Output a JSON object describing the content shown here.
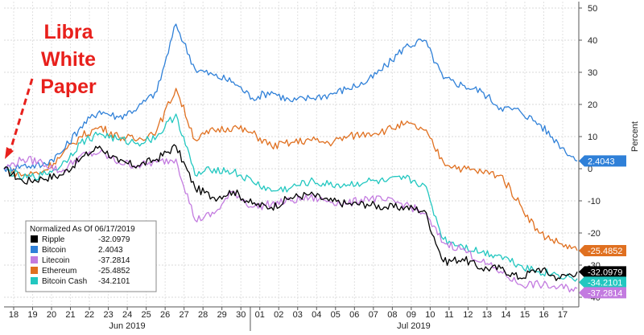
{
  "chart_data": {
    "type": "line",
    "ylabel": "Percent",
    "ylim": [
      -43,
      52
    ],
    "y_ticks": [
      50,
      40,
      30,
      20,
      10,
      0,
      -10,
      -20,
      -30,
      -40
    ],
    "y_axis_side": "right",
    "grid": true,
    "x_tick_labels": [
      "18",
      "19",
      "20",
      "21",
      "22",
      "23",
      "24",
      "25",
      "26",
      "27",
      "28",
      "29",
      "30",
      "01",
      "02",
      "03",
      "04",
      "05",
      "06",
      "07",
      "08",
      "09",
      "10",
      "11",
      "12",
      "13",
      "14",
      "15",
      "16",
      "17"
    ],
    "x_month_labels": [
      "Jun 2019",
      "Jul 2019"
    ],
    "annotation": "Libra White Paper",
    "annotation_lines": [
      "Libra",
      "White",
      "Paper"
    ],
    "legend": {
      "title": "Normalized As Of 06/17/2019",
      "placement": "bottom-left"
    },
    "x": [
      0,
      1,
      2,
      3,
      4,
      5,
      6,
      7,
      8,
      9,
      10,
      11,
      12,
      13,
      14,
      15,
      16,
      17,
      18,
      19,
      20,
      21,
      22,
      23,
      24,
      25,
      26,
      27,
      28,
      29,
      30
    ],
    "series": [
      {
        "name": "Ripple",
        "label": "-32.0979",
        "color": "#000000",
        "last": -32.0979,
        "values": [
          0,
          -4,
          -3,
          -2,
          3,
          7,
          2,
          1,
          3,
          7,
          -6,
          -9,
          -7,
          -11,
          -12,
          -9,
          -8,
          -10,
          -11,
          -11,
          -12,
          -12,
          -13,
          -29,
          -28,
          -31,
          -31,
          -34,
          -31,
          -34,
          -32.0979
        ]
      },
      {
        "name": "Bitcoin",
        "label": "2.4043",
        "color": "#2f80d8",
        "last": 2.4043,
        "values": [
          0,
          1,
          1,
          5,
          13,
          18,
          16,
          19,
          24,
          45,
          31,
          29,
          27,
          22,
          24,
          21,
          22,
          23,
          25,
          27,
          32,
          38,
          40,
          28,
          26,
          24,
          19,
          18,
          14,
          8,
          2.4043
        ]
      },
      {
        "name": "Litecoin",
        "label": "-37.2814",
        "color": "#c37be0",
        "last": -37.2814,
        "values": [
          0,
          3,
          2,
          -1,
          4,
          5,
          2,
          1,
          2,
          3,
          -16,
          -14,
          -7,
          -12,
          -11,
          -10,
          -9,
          -10,
          -11,
          -9,
          -10,
          -11,
          -14,
          -23,
          -25,
          -29,
          -32,
          -36,
          -36,
          -37,
          -37.2814
        ]
      },
      {
        "name": "Ethereum",
        "label": "-25.4852",
        "color": "#e07020",
        "last": -25.4852,
        "values": [
          0,
          -2,
          -1,
          4,
          10,
          13,
          10,
          9,
          12,
          25,
          9,
          12,
          13,
          11,
          7,
          8,
          9,
          8,
          10,
          11,
          12,
          14,
          12,
          2,
          0,
          -1,
          -2,
          -11,
          -20,
          -23,
          -25.4852
        ]
      },
      {
        "name": "Bitcoin Cash",
        "label": "-34.2101",
        "color": "#22c7c0",
        "last": -34.2101,
        "values": [
          0,
          -3,
          -2,
          1,
          8,
          11,
          9,
          8,
          10,
          17,
          -2,
          0,
          -1,
          -4,
          -7,
          -6,
          -4,
          -5,
          -5,
          -4,
          -4,
          -3,
          -5,
          -22,
          -24,
          -26,
          -27,
          -30,
          -32,
          -33,
          -34.2101
        ]
      }
    ]
  }
}
